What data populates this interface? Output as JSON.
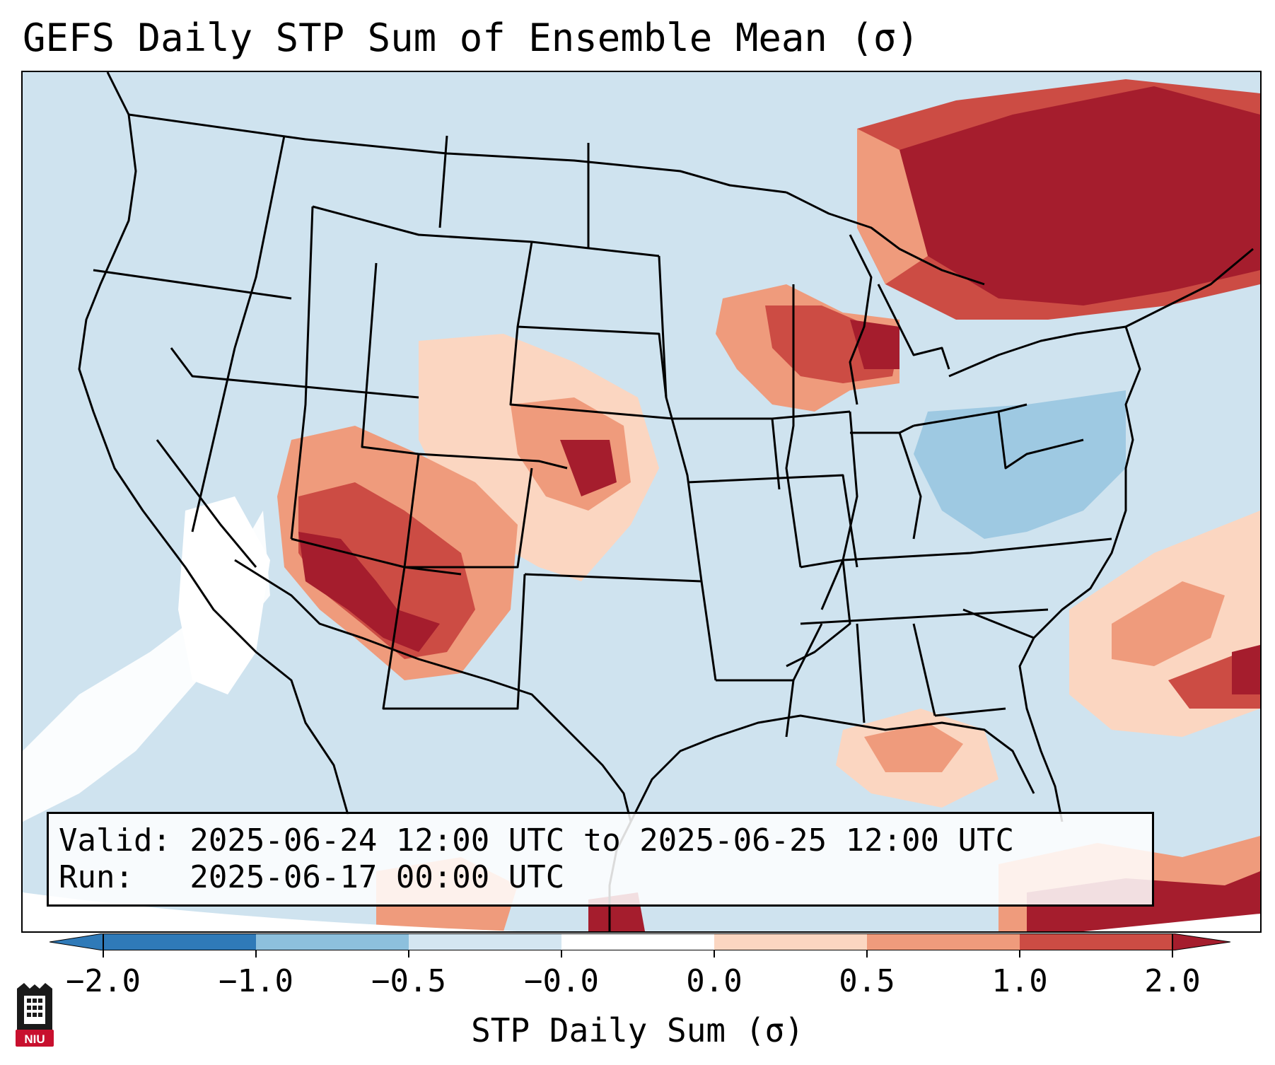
{
  "header": {
    "title": "GEFS Daily STP Sum of Ensemble Mean (σ)"
  },
  "valid_box": {
    "valid_line": "Valid: 2025-06-24 12:00 UTC to 2025-06-25 12:00 UTC",
    "run_line": "Run:   2025-06-17 00:00 UTC"
  },
  "colorbar": {
    "label": "STP Daily Sum (σ)",
    "ticks": [
      "−2.0",
      "−1.0",
      "−0.5",
      "−0.0",
      "0.0",
      "0.5",
      "1.0",
      "2.0"
    ],
    "colors": [
      "#2f7ab8",
      "#8dc0dd",
      "#d4e6f1",
      "#ffffff",
      "#fbd6c1",
      "#ef9b7c",
      "#cc4c44",
      "#a51d2d"
    ]
  },
  "logo": {
    "text": "NIU"
  },
  "colors": {
    "ocean": "#cfe3ef",
    "neg_strong": "#2f7ab8",
    "neg_light": "#8dc0dd",
    "white": "#ffffff",
    "pos_light": "#fbd6c1",
    "pos_mid": "#ef9b7c",
    "pos_high": "#cc4c44",
    "pos_max": "#a51d2d"
  }
}
